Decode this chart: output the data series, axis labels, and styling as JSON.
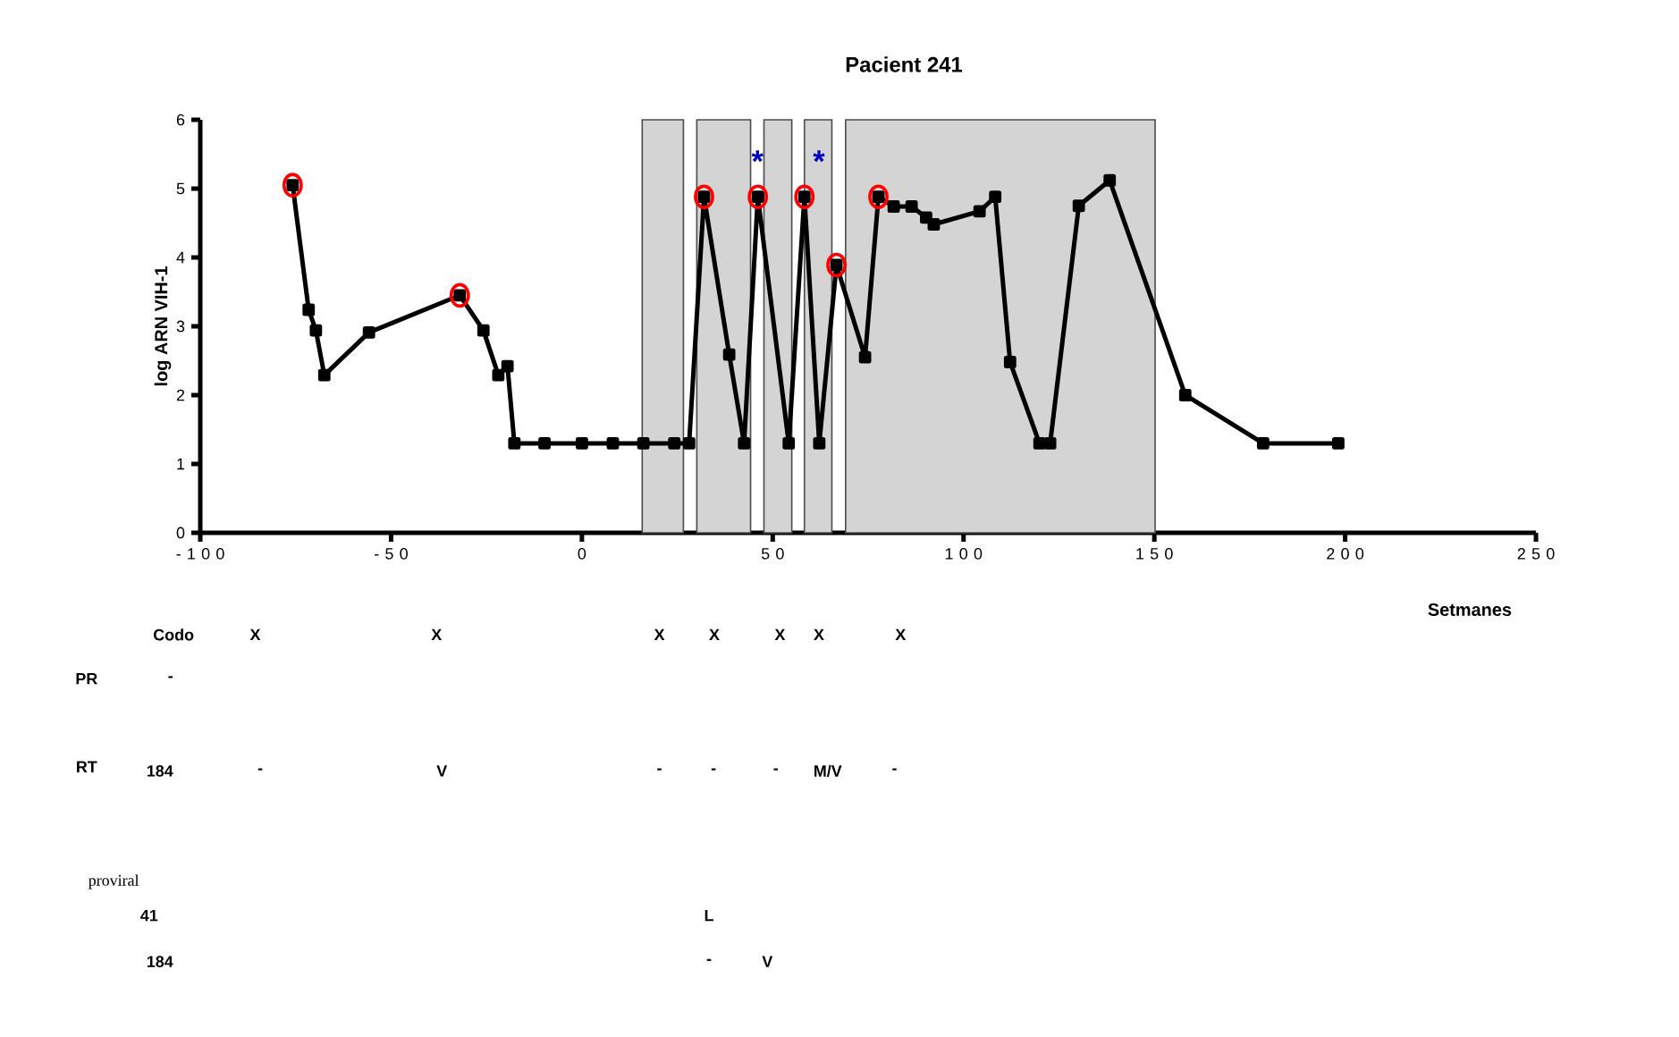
{
  "chart_data": {
    "type": "line",
    "title": "Pacient 241",
    "xlabel": "Setmanes",
    "ylabel": "log ARN VIH-1",
    "xlim": [
      -100,
      250
    ],
    "ylim": [
      0,
      6
    ],
    "xticks": [
      -100,
      -50,
      0,
      50,
      100,
      150,
      200,
      250
    ],
    "yticks": [
      0,
      1,
      2,
      3,
      4,
      5,
      6
    ],
    "marker": "square",
    "line_style": "solid",
    "series": [
      {
        "color": "#000000",
        "x": [
          -75.8,
          -71.6,
          -69.7,
          -67.5,
          -55.8,
          -32.0,
          -25.8,
          -21.9,
          -19.5,
          -17.7,
          -9.8,
          0,
          8.1,
          16.1,
          24.2,
          28.1,
          32.0,
          38.6,
          42.5,
          46.1,
          54.2,
          58.3,
          62.2,
          66.7,
          74.2,
          77.7,
          81.7,
          86.4,
          90.2,
          92.2,
          104.2,
          108.3,
          112.2,
          119.9,
          122.7,
          130.2,
          138.3,
          158.1,
          178.5,
          198.2
        ],
        "values": [
          5.05,
          3.24,
          2.94,
          2.29,
          2.91,
          3.45,
          2.94,
          2.29,
          2.42,
          1.3,
          1.3,
          1.3,
          1.3,
          1.3,
          1.3,
          1.3,
          4.88,
          2.59,
          1.3,
          4.88,
          1.3,
          4.88,
          1.3,
          3.89,
          2.55,
          4.88,
          4.74,
          4.74,
          4.58,
          4.48,
          4.67,
          4.88,
          2.48,
          1.3,
          1.3,
          4.75,
          5.12,
          2.0,
          1.3,
          1.3
        ]
      },
      {
        "type": "scatter",
        "marker": "circle",
        "color": "#ff0000",
        "x": [
          -75.8,
          -32.0,
          32.0,
          46.1,
          58.3,
          66.7,
          77.7
        ],
        "values": [
          5.05,
          3.45,
          4.88,
          4.88,
          4.88,
          3.89,
          4.88
        ]
      }
    ],
    "bands": [
      {
        "axis": "x",
        "from": 15.8,
        "to": 26.6,
        "color": "#d4d4d4"
      },
      {
        "axis": "x",
        "from": 30.1,
        "to": 44.2,
        "color": "#d4d4d4"
      },
      {
        "axis": "x",
        "from": 47.7,
        "to": 55.0,
        "color": "#d4d4d4"
      },
      {
        "axis": "x",
        "from": 58.3,
        "to": 65.5,
        "color": "#d4d4d4"
      },
      {
        "axis": "x",
        "from": 69.1,
        "to": 150.2,
        "color": "#d4d4d4"
      }
    ],
    "annotations": [
      "*",
      "*",
      "Codo",
      "X",
      "X",
      "X",
      "X",
      "X",
      "X",
      "X",
      "PR",
      "-",
      "RT",
      "184",
      "-",
      "V",
      "-",
      "-",
      "-",
      "M/V",
      "-",
      "proviral",
      "41",
      "L",
      "184",
      "-",
      "V"
    ]
  }
}
